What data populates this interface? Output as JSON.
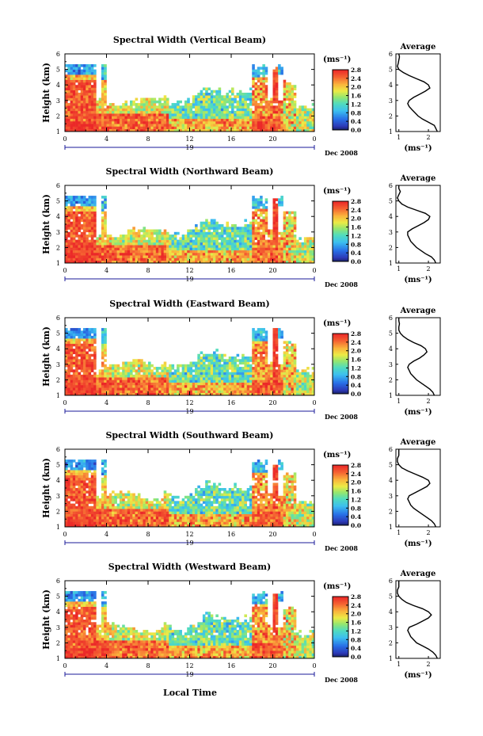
{
  "figure": {
    "xlabel": "Local Time",
    "date_label": "Dec 2008",
    "day_label": "19",
    "colorbar_unit": "(ms⁻¹)",
    "profile_xlabel": "(ms⁻¹)",
    "profile_title": "Average",
    "ylabel": "Height (km)"
  },
  "chart_data": [
    {
      "type": "heatmap",
      "title": "Spectral Width (Vertical Beam)",
      "xlabel": "Local Time",
      "ylabel": "Height (km)",
      "x_ticks": [
        "0",
        "4",
        "8",
        "12",
        "16",
        "20",
        "0"
      ],
      "x_range_hours": [
        0,
        24
      ],
      "y_ticks": [
        "1",
        "2",
        "3",
        "4",
        "5",
        "6"
      ],
      "ylim": [
        1,
        6
      ],
      "colorbar": {
        "unit": "(ms⁻¹)",
        "ticks": [
          "0.0",
          "0.4",
          "0.8",
          "1.2",
          "1.6",
          "2.0",
          "2.4",
          "2.8"
        ],
        "range": [
          0.0,
          2.8
        ]
      },
      "profile": {
        "title": "Average",
        "xlabel": "(ms⁻¹)",
        "x_ticks": [
          "1",
          "2"
        ],
        "xlim": [
          0.9,
          2.4
        ],
        "heights": [
          1.0,
          1.2,
          1.4,
          1.6,
          1.8,
          2.0,
          2.2,
          2.4,
          2.6,
          2.8,
          3.0,
          3.2,
          3.4,
          3.6,
          3.8,
          4.0,
          4.2,
          4.4,
          4.6,
          4.8,
          5.0,
          5.2,
          5.4,
          5.6,
          5.8,
          6.0
        ],
        "values": [
          2.3,
          2.25,
          2.2,
          2.0,
          1.8,
          1.65,
          1.55,
          1.45,
          1.35,
          1.3,
          1.35,
          1.5,
          1.7,
          1.9,
          2.05,
          2.0,
          1.85,
          1.6,
          1.35,
          1.15,
          1.0,
          0.95,
          0.98,
          1.0,
          1.02,
          1.0
        ]
      }
    },
    {
      "type": "heatmap",
      "title": "Spectral Width (Northward Beam)",
      "xlabel": "Local Time",
      "ylabel": "Height (km)",
      "x_ticks": [
        "0",
        "4",
        "8",
        "12",
        "16",
        "20",
        "0"
      ],
      "x_range_hours": [
        0,
        24
      ],
      "y_ticks": [
        "1",
        "2",
        "3",
        "4",
        "5",
        "6"
      ],
      "ylim": [
        1,
        6
      ],
      "colorbar": {
        "unit": "(ms⁻¹)",
        "ticks": [
          "0.0",
          "0.4",
          "0.8",
          "1.2",
          "1.6",
          "2.0",
          "2.4",
          "2.8"
        ],
        "range": [
          0.0,
          2.8
        ]
      },
      "profile": {
        "title": "Average",
        "xlabel": "(ms⁻¹)",
        "x_ticks": [
          "1",
          "2"
        ],
        "xlim": [
          0.9,
          2.4
        ],
        "heights": [
          1.0,
          1.2,
          1.4,
          1.6,
          1.8,
          2.0,
          2.2,
          2.4,
          2.6,
          2.8,
          3.0,
          3.2,
          3.4,
          3.6,
          3.8,
          4.0,
          4.2,
          4.4,
          4.6,
          4.8,
          5.0,
          5.2,
          5.4,
          5.6,
          5.8,
          6.0
        ],
        "values": [
          2.25,
          2.2,
          2.1,
          1.9,
          1.75,
          1.6,
          1.5,
          1.4,
          1.35,
          1.3,
          1.3,
          1.45,
          1.65,
          1.85,
          2.0,
          2.05,
          1.9,
          1.6,
          1.3,
          1.1,
          1.0,
          0.95,
          1.0,
          1.05,
          1.0,
          1.0
        ]
      }
    },
    {
      "type": "heatmap",
      "title": "Spectral Width (Eastward Beam)",
      "xlabel": "Local Time",
      "ylabel": "Height (km)",
      "x_ticks": [
        "0",
        "4",
        "8",
        "12",
        "16",
        "20",
        "0"
      ],
      "x_range_hours": [
        0,
        24
      ],
      "y_ticks": [
        "1",
        "2",
        "3",
        "4",
        "5",
        "6"
      ],
      "ylim": [
        1,
        6
      ],
      "colorbar": {
        "unit": "(ms⁻¹)",
        "ticks": [
          "0.0",
          "0.4",
          "0.8",
          "1.2",
          "1.6",
          "2.0",
          "2.4",
          "2.8"
        ],
        "range": [
          0.0,
          2.8
        ]
      },
      "profile": {
        "title": "Average",
        "xlabel": "(ms⁻¹)",
        "x_ticks": [
          "1",
          "2"
        ],
        "xlim": [
          0.9,
          2.4
        ],
        "heights": [
          1.0,
          1.2,
          1.4,
          1.6,
          1.8,
          2.0,
          2.2,
          2.4,
          2.6,
          2.8,
          3.0,
          3.2,
          3.4,
          3.6,
          3.8,
          4.0,
          4.2,
          4.4,
          4.6,
          4.8,
          5.0,
          5.2,
          5.4,
          5.6,
          5.8,
          6.0
        ],
        "values": [
          2.2,
          2.15,
          2.05,
          1.9,
          1.75,
          1.6,
          1.5,
          1.4,
          1.35,
          1.3,
          1.35,
          1.5,
          1.7,
          1.85,
          1.95,
          1.9,
          1.75,
          1.5,
          1.3,
          1.15,
          1.05,
          1.0,
          1.0,
          1.02,
          1.0,
          1.0
        ]
      }
    },
    {
      "type": "heatmap",
      "title": "Spectral Width (Southward Beam)",
      "xlabel": "Local Time",
      "ylabel": "Height (km)",
      "x_ticks": [
        "0",
        "4",
        "8",
        "12",
        "16",
        "20",
        "0"
      ],
      "x_range_hours": [
        0,
        24
      ],
      "y_ticks": [
        "1",
        "2",
        "3",
        "4",
        "5",
        "6"
      ],
      "ylim": [
        1,
        6
      ],
      "colorbar": {
        "unit": "(ms⁻¹)",
        "ticks": [
          "0.0",
          "0.4",
          "0.8",
          "1.2",
          "1.6",
          "2.0",
          "2.4",
          "2.8"
        ],
        "range": [
          0.0,
          2.8
        ]
      },
      "profile": {
        "title": "Average",
        "xlabel": "(ms⁻¹)",
        "x_ticks": [
          "1",
          "2"
        ],
        "xlim": [
          0.9,
          2.4
        ],
        "heights": [
          1.0,
          1.2,
          1.4,
          1.6,
          1.8,
          2.0,
          2.2,
          2.4,
          2.6,
          2.8,
          3.0,
          3.2,
          3.4,
          3.6,
          3.8,
          4.0,
          4.2,
          4.4,
          4.6,
          4.8,
          5.0,
          5.2,
          5.4,
          5.6,
          5.8,
          6.0
        ],
        "values": [
          2.25,
          2.2,
          2.1,
          1.95,
          1.8,
          1.65,
          1.5,
          1.4,
          1.35,
          1.3,
          1.35,
          1.55,
          1.75,
          1.95,
          2.05,
          2.0,
          1.8,
          1.55,
          1.3,
          1.1,
          1.0,
          0.95,
          0.95,
          1.0,
          1.0,
          1.0
        ]
      }
    },
    {
      "type": "heatmap",
      "title": "Spectral Width (Westward Beam)",
      "xlabel": "Local Time",
      "ylabel": "Height (km)",
      "x_ticks": [
        "0",
        "4",
        "8",
        "12",
        "16",
        "20",
        "0"
      ],
      "x_range_hours": [
        0,
        24
      ],
      "y_ticks": [
        "1",
        "2",
        "3",
        "4",
        "5",
        "6"
      ],
      "ylim": [
        1,
        6
      ],
      "colorbar": {
        "unit": "(ms⁻¹)",
        "ticks": [
          "0.0",
          "0.4",
          "0.8",
          "1.2",
          "1.6",
          "2.0",
          "2.4",
          "2.8"
        ],
        "range": [
          0.0,
          2.8
        ]
      },
      "profile": {
        "title": "Average",
        "xlabel": "(ms⁻¹)",
        "x_ticks": [
          "1",
          "2"
        ],
        "xlim": [
          0.9,
          2.4
        ],
        "heights": [
          1.0,
          1.2,
          1.4,
          1.6,
          1.8,
          2.0,
          2.2,
          2.4,
          2.6,
          2.8,
          3.0,
          3.2,
          3.4,
          3.6,
          3.8,
          4.0,
          4.2,
          4.4,
          4.6,
          4.8,
          5.0,
          5.2,
          5.4,
          5.6,
          5.8,
          6.0
        ],
        "values": [
          2.3,
          2.25,
          2.15,
          2.0,
          1.8,
          1.6,
          1.5,
          1.4,
          1.35,
          1.3,
          1.35,
          1.6,
          1.8,
          2.0,
          2.1,
          2.0,
          1.8,
          1.5,
          1.25,
          1.1,
          1.0,
          0.95,
          0.95,
          1.0,
          1.0,
          1.0
        ]
      }
    }
  ]
}
